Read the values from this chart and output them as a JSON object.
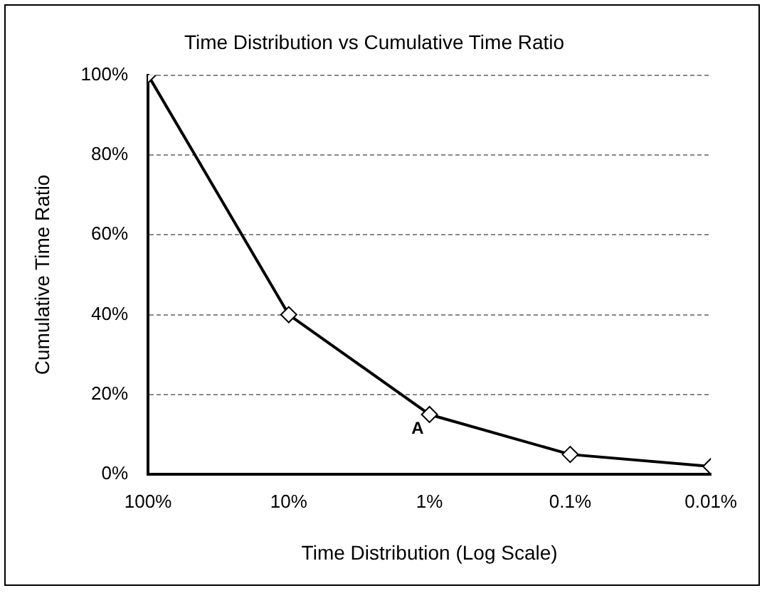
{
  "chart_data": {
    "type": "line",
    "title": "Time Distribution vs Cumulative Time Ratio",
    "xlabel": "Time Distribution (Log Scale)",
    "ylabel": "Cumulative Time Ratio",
    "x": [
      100,
      10,
      1,
      0.1,
      0.01
    ],
    "series": [
      {
        "color": "#000000",
        "values": [
          100,
          40,
          15,
          5,
          2
        ]
      }
    ],
    "log": "x",
    "xlim": [
      100,
      0.01
    ],
    "xticks": [
      {
        "value": 100,
        "label": "100%"
      },
      {
        "value": 10,
        "label": "10%"
      },
      {
        "value": 1,
        "label": "1%"
      },
      {
        "value": 0.1,
        "label": "0.1%"
      },
      {
        "value": 0.01,
        "label": "0.01%"
      }
    ],
    "ylim": [
      0,
      100
    ],
    "yticks": [
      {
        "value": 0,
        "label": "0%"
      },
      {
        "value": 20,
        "label": "20%"
      },
      {
        "value": 40,
        "label": "40%"
      },
      {
        "value": 60,
        "label": "60%"
      },
      {
        "value": 80,
        "label": "80%"
      },
      {
        "value": 100,
        "label": "100%"
      }
    ],
    "grid": "y",
    "marker": "diamond",
    "line_style": "solid",
    "legend": false,
    "annotations": [
      {
        "text": "A",
        "x": 1,
        "y": 15
      }
    ]
  }
}
